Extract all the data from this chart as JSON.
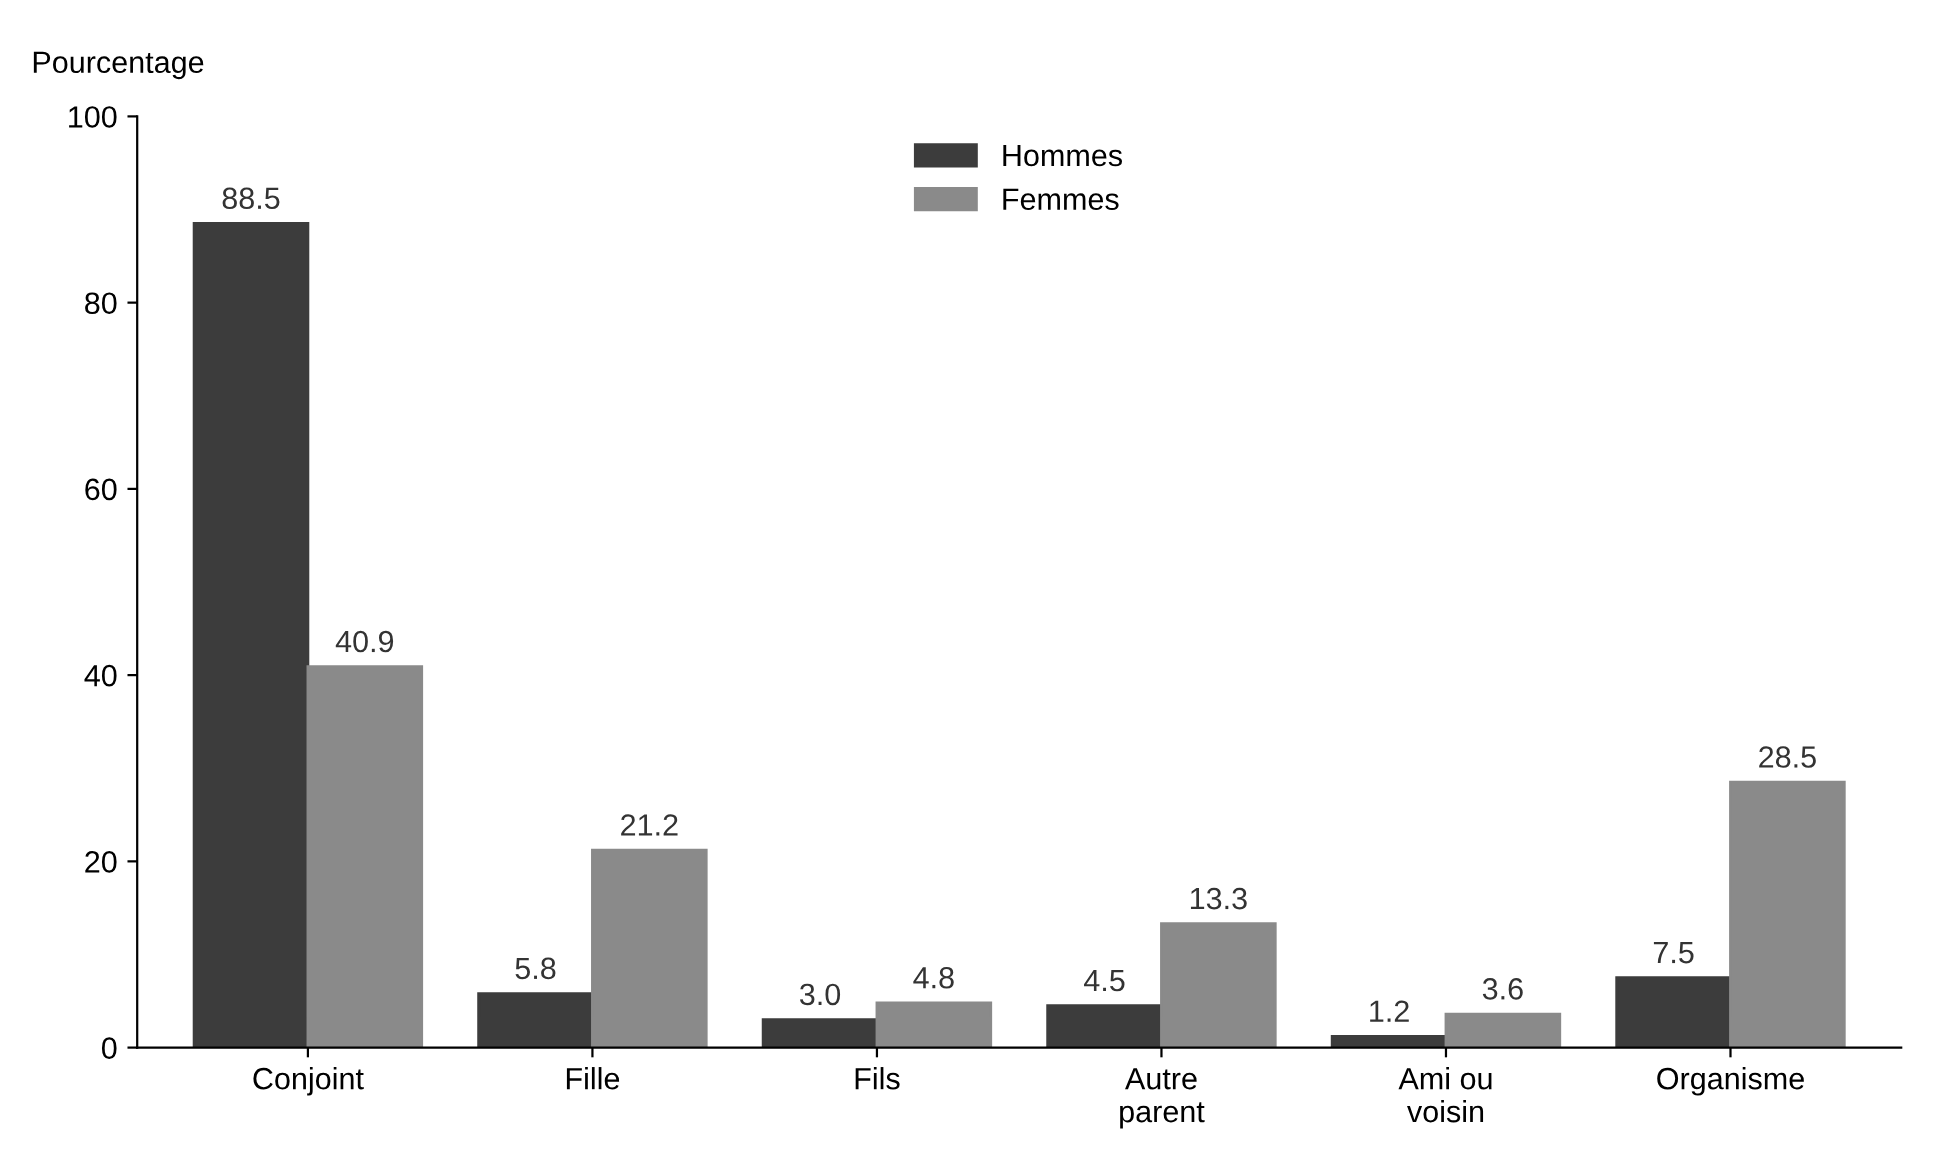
{
  "chart_data": {
    "type": "bar",
    "ylabel": "Pourcentage",
    "categories": [
      "Conjoint",
      "Fille",
      "Fils",
      "Autre\nparent",
      "Ami ou\nvoisin",
      "Organisme"
    ],
    "series": [
      {
        "name": "Hommes",
        "color": "#3c3c3c",
        "values": [
          88.5,
          5.8,
          3.0,
          4.5,
          1.2,
          7.5
        ],
        "value_labels": [
          "88.5",
          "5.8",
          "3.0",
          "4.5",
          "1.2",
          "7.5"
        ]
      },
      {
        "name": "Femmes",
        "color": "#8a8a8a",
        "values": [
          40.9,
          21.2,
          4.8,
          13.3,
          3.6,
          28.5
        ],
        "value_labels": [
          "40.9",
          "21.2",
          "4.8",
          "13.3",
          "3.6",
          "28.5"
        ]
      }
    ],
    "ylim": [
      0,
      100
    ],
    "yticks": [
      0,
      20,
      40,
      60,
      80,
      100
    ],
    "grid": false,
    "legend": "top"
  }
}
